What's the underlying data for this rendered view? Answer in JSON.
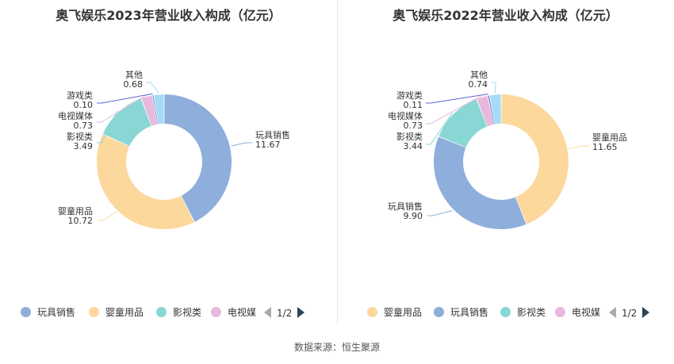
{
  "source_label": "数据来源：恒生聚源",
  "chart_data": [
    {
      "type": "pie",
      "title": "奥飞娱乐2023年营业收入构成（亿元）",
      "slices": [
        {
          "name": "玩具销售",
          "value": 11.67,
          "color": "#8eaedb"
        },
        {
          "name": "婴童用品",
          "value": 10.72,
          "color": "#fdd89c"
        },
        {
          "name": "影视类",
          "value": 3.49,
          "color": "#88d7d5"
        },
        {
          "name": "电视媒体",
          "value": 0.73,
          "color": "#e8b9dc"
        },
        {
          "name": "游戏类",
          "value": 0.1,
          "color": "#5c66cc"
        },
        {
          "name": "其他",
          "value": 0.68,
          "color": "#a6dbf5"
        }
      ],
      "value_labels": [
        "11.67",
        "10.72",
        "3.49",
        "0.73",
        "0.10",
        "0.68"
      ],
      "legend": [
        "玩具销售",
        "婴童用品",
        "影视类",
        "电视媒"
      ],
      "legend_position": "bottom",
      "pager": "1/2"
    },
    {
      "type": "pie",
      "title": "奥飞娱乐2022年营业收入构成（亿元）",
      "slices": [
        {
          "name": "婴童用品",
          "value": 11.65,
          "color": "#fdd89c"
        },
        {
          "name": "玩具销售",
          "value": 9.9,
          "color": "#8eaedb"
        },
        {
          "name": "影视类",
          "value": 3.44,
          "color": "#88d7d5"
        },
        {
          "name": "电视媒体",
          "value": 0.73,
          "color": "#e8b9dc"
        },
        {
          "name": "游戏类",
          "value": 0.11,
          "color": "#5c66cc"
        },
        {
          "name": "其他",
          "value": 0.74,
          "color": "#a6dbf5"
        }
      ],
      "value_labels": [
        "11.65",
        "9.90",
        "3.44",
        "0.73",
        "0.11",
        "0.74"
      ],
      "legend": [
        "婴童用品",
        "玩具销售",
        "影视类",
        "电视媒"
      ],
      "legend_position": "bottom",
      "pager": "1/2"
    }
  ]
}
